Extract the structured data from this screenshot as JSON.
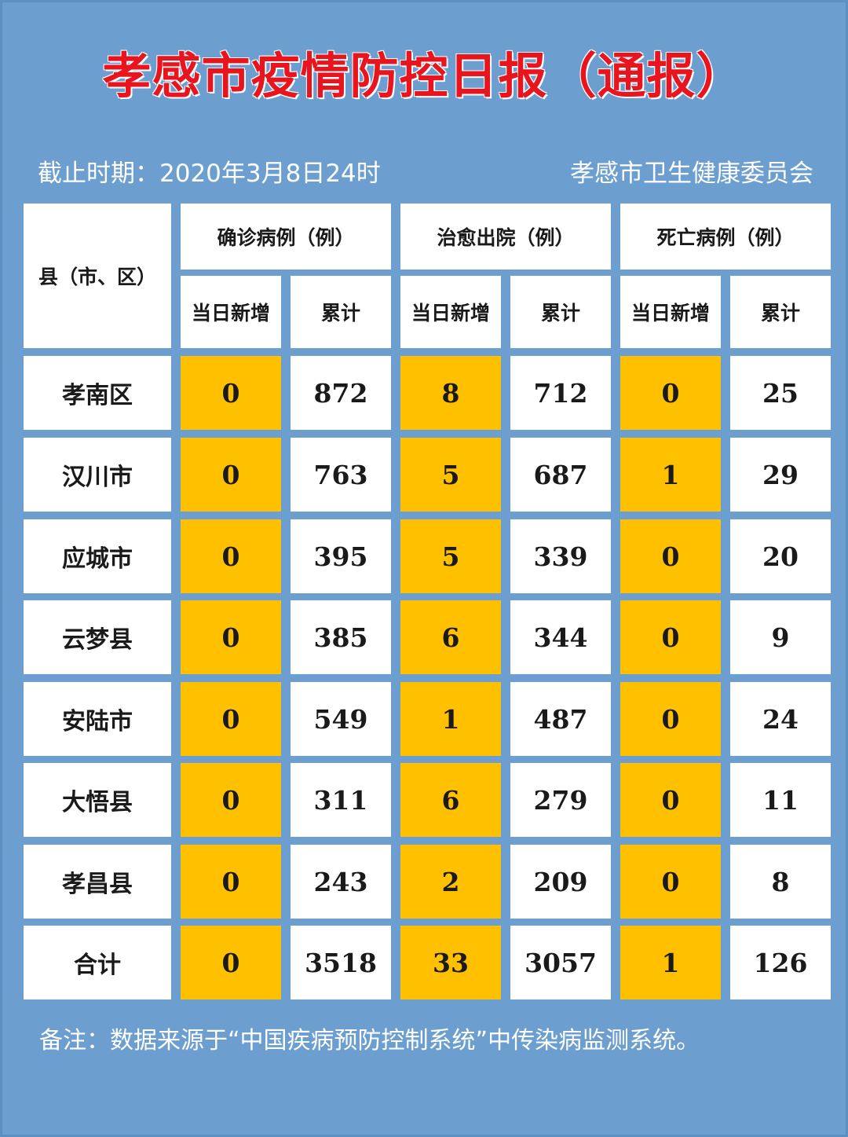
{
  "title": "孝感市疫情防控日报（通报）",
  "cutoff": "截止时期：2020年3月8日24时",
  "publisher": "孝感市卫生健康委员会",
  "table": {
    "region_header": "县（市、区）",
    "groups": [
      "确诊病例（例）",
      "治愈出院（例）",
      "死亡病例（例）"
    ],
    "subheaders": [
      "当日新增",
      "累计",
      "当日新增",
      "累计",
      "当日新增",
      "累计"
    ],
    "rows": [
      {
        "name": "孝南区",
        "values": [
          "0",
          "872",
          "8",
          "712",
          "0",
          "25"
        ]
      },
      {
        "name": "汉川市",
        "values": [
          "0",
          "763",
          "5",
          "687",
          "1",
          "29"
        ]
      },
      {
        "name": "应城市",
        "values": [
          "0",
          "395",
          "5",
          "339",
          "0",
          "20"
        ]
      },
      {
        "name": "云梦县",
        "values": [
          "0",
          "385",
          "6",
          "344",
          "0",
          "9"
        ]
      },
      {
        "name": "安陆市",
        "values": [
          "0",
          "549",
          "1",
          "487",
          "0",
          "24"
        ]
      },
      {
        "name": "大悟县",
        "values": [
          "0",
          "311",
          "6",
          "279",
          "0",
          "11"
        ]
      },
      {
        "name": "孝昌县",
        "values": [
          "0",
          "243",
          "2",
          "209",
          "0",
          "8"
        ]
      },
      {
        "name": "合计",
        "values": [
          "0",
          "3518",
          "33",
          "3057",
          "1",
          "126"
        ]
      }
    ]
  },
  "note": "备注：数据来源于“中国疾病预防控制系统”中传染病监测系统。",
  "colors": {
    "background": "#6c9fcf",
    "title": "#e8141e",
    "highlight": "#ffc000"
  }
}
